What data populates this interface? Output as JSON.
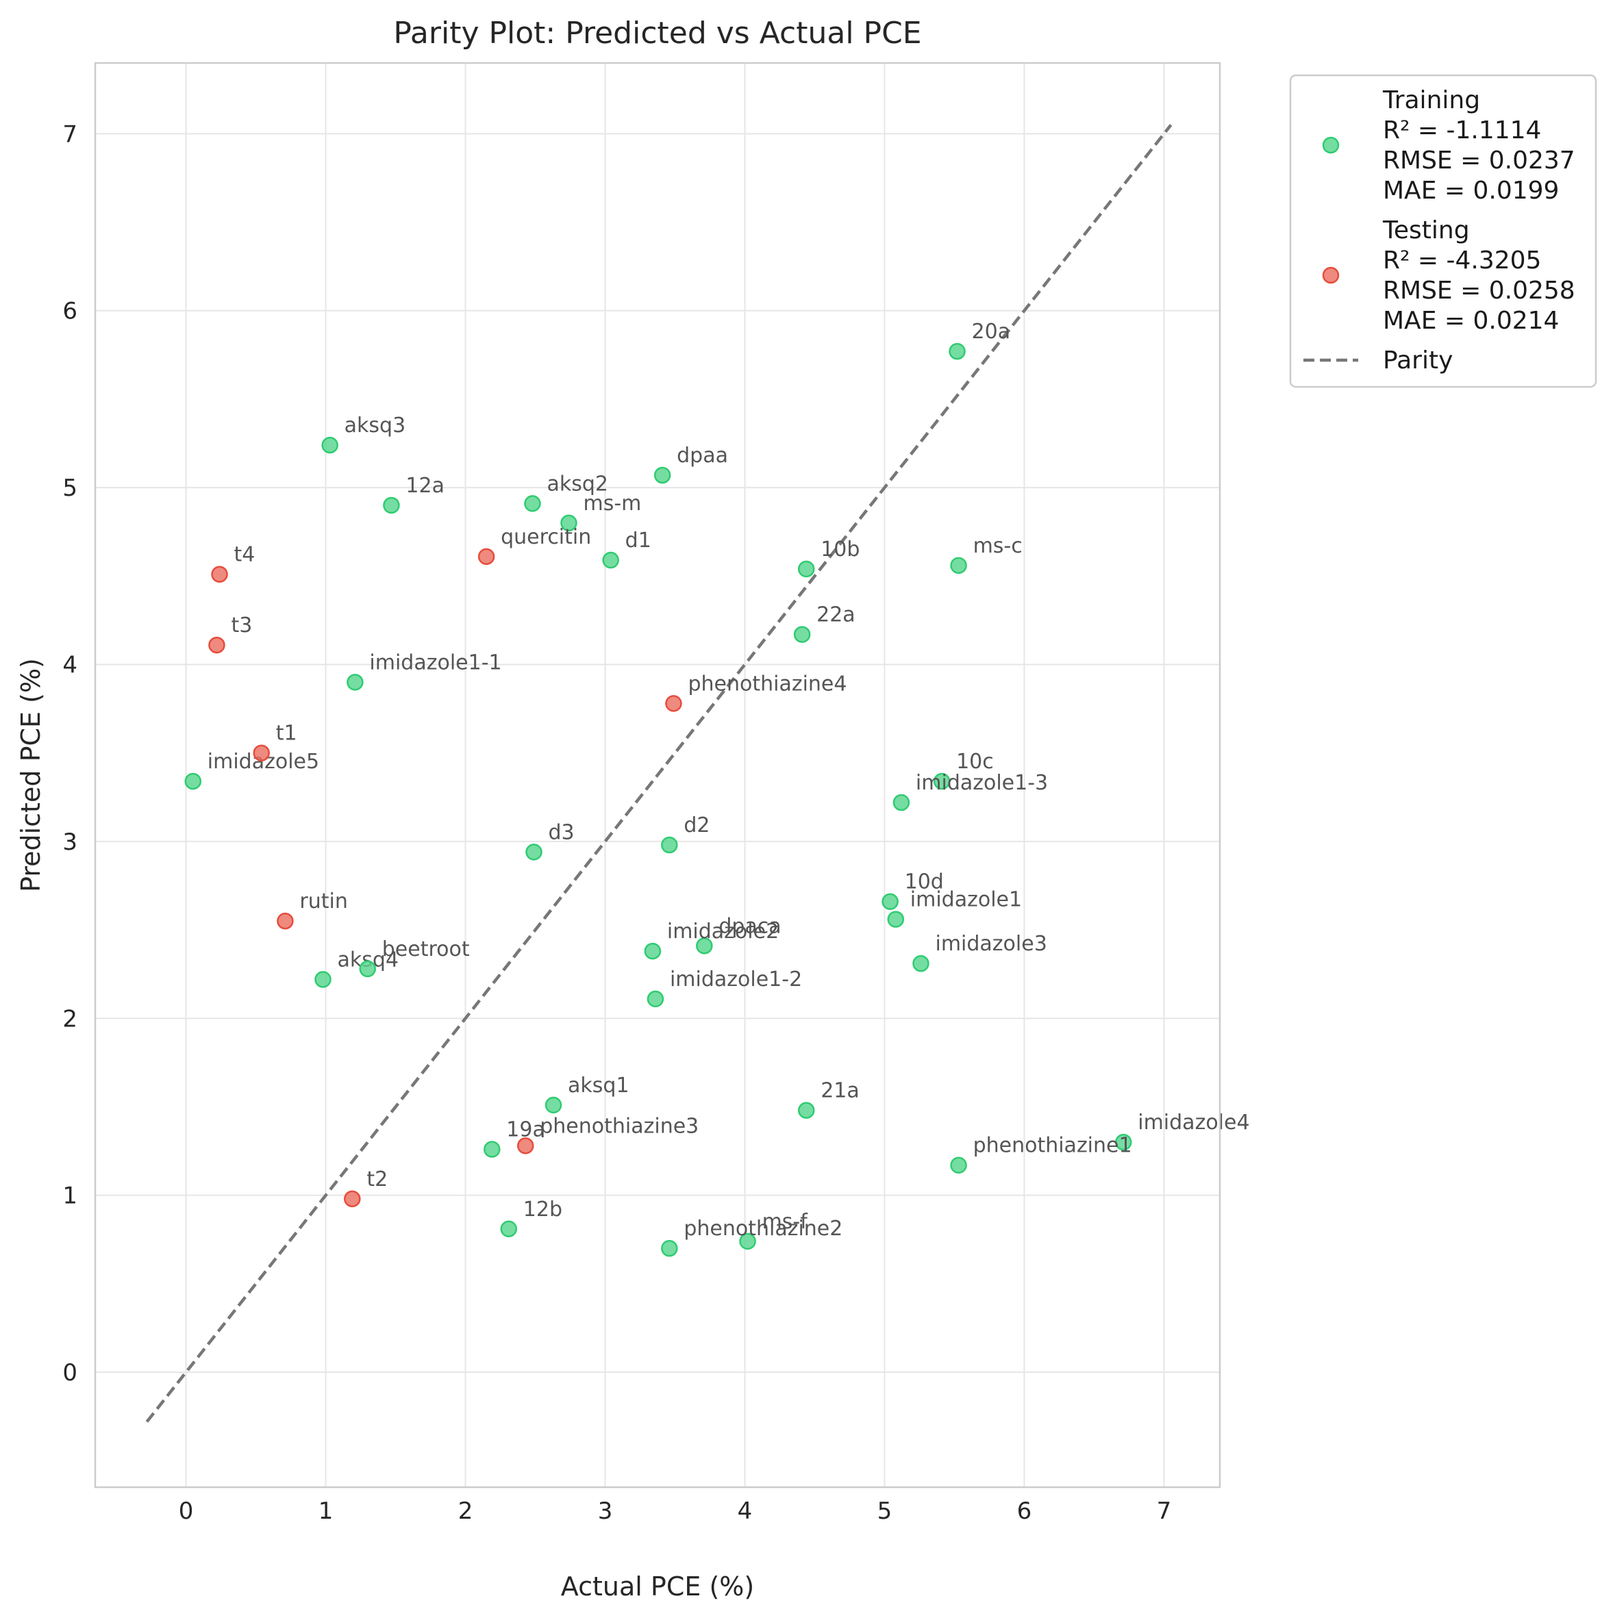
{
  "chart_data": {
    "type": "scatter",
    "title": "Parity Plot: Predicted vs Actual PCE",
    "xlabel": "Actual PCE (%)",
    "ylabel": "Predicted PCE (%)",
    "xlim": [
      -0.65,
      7.4
    ],
    "ylim": [
      -0.65,
      7.4
    ],
    "xticks": [
      0,
      1,
      2,
      3,
      4,
      5,
      6,
      7
    ],
    "yticks": [
      0,
      1,
      2,
      3,
      4,
      5,
      6,
      7
    ],
    "grid": true,
    "legend_position": "outside-top-right",
    "parity_line": {
      "name": "Parity",
      "color": "#777777",
      "from": [
        -0.28,
        -0.28
      ],
      "to": [
        7.05,
        7.05
      ]
    },
    "series": [
      {
        "name": "Training",
        "metrics": [
          "R² = -1.1114",
          "RMSE = 0.0237",
          "MAE = 0.0199"
        ],
        "color": "#58d68d",
        "edge": "#2ecc71",
        "points": [
          {
            "label": "20a",
            "x": 5.52,
            "y": 5.77
          },
          {
            "label": "aksq3",
            "x": 1.03,
            "y": 5.24
          },
          {
            "label": "dpaa",
            "x": 3.41,
            "y": 5.07
          },
          {
            "label": "12a",
            "x": 1.47,
            "y": 4.9
          },
          {
            "label": "aksq2",
            "x": 2.48,
            "y": 4.91
          },
          {
            "label": "ms-m",
            "x": 2.74,
            "y": 4.8
          },
          {
            "label": "d1",
            "x": 3.04,
            "y": 4.59
          },
          {
            "label": "10b",
            "x": 4.44,
            "y": 4.54
          },
          {
            "label": "ms-c",
            "x": 5.53,
            "y": 4.56
          },
          {
            "label": "22a",
            "x": 4.41,
            "y": 4.17
          },
          {
            "label": "imidazole1-1",
            "x": 1.21,
            "y": 3.9
          },
          {
            "label": "imidazole5",
            "x": 0.05,
            "y": 3.34
          },
          {
            "label": "10c",
            "x": 5.41,
            "y": 3.34
          },
          {
            "label": "imidazole1-3",
            "x": 5.12,
            "y": 3.22
          },
          {
            "label": "d3",
            "x": 2.49,
            "y": 2.94
          },
          {
            "label": "d2",
            "x": 3.46,
            "y": 2.98
          },
          {
            "label": "10d",
            "x": 5.04,
            "y": 2.66
          },
          {
            "label": "imidazole1",
            "x": 5.08,
            "y": 2.56
          },
          {
            "label": "imidazole3",
            "x": 5.26,
            "y": 2.31
          },
          {
            "label": "dpaca",
            "x": 3.71,
            "y": 2.41
          },
          {
            "label": "imidazole2",
            "x": 3.34,
            "y": 2.38
          },
          {
            "label": "aksq4",
            "x": 0.98,
            "y": 2.22
          },
          {
            "label": "beetroot",
            "x": 1.3,
            "y": 2.28
          },
          {
            "label": "imidazole1-2",
            "x": 3.36,
            "y": 2.11
          },
          {
            "label": "aksq1",
            "x": 2.63,
            "y": 1.51
          },
          {
            "label": "21a",
            "x": 4.44,
            "y": 1.48
          },
          {
            "label": "19a",
            "x": 2.19,
            "y": 1.26
          },
          {
            "label": "imidazole4",
            "x": 6.71,
            "y": 1.3
          },
          {
            "label": "phenothiazine1",
            "x": 5.53,
            "y": 1.17
          },
          {
            "label": "12b",
            "x": 2.31,
            "y": 0.81
          },
          {
            "label": "ms-f",
            "x": 4.02,
            "y": 0.74
          },
          {
            "label": "phenothiazine2",
            "x": 3.46,
            "y": 0.7
          }
        ]
      },
      {
        "name": "Testing",
        "metrics": [
          "R² = -4.3205",
          "RMSE = 0.0258",
          "MAE = 0.0214"
        ],
        "color": "#ec7063",
        "edge": "#e74c3c",
        "points": [
          {
            "label": "t4",
            "x": 0.24,
            "y": 4.51
          },
          {
            "label": "t3",
            "x": 0.22,
            "y": 4.11
          },
          {
            "label": "quercitin",
            "x": 2.15,
            "y": 4.61
          },
          {
            "label": "phenothiazine4",
            "x": 3.49,
            "y": 3.78
          },
          {
            "label": "t1",
            "x": 0.54,
            "y": 3.5
          },
          {
            "label": "rutin",
            "x": 0.71,
            "y": 2.55
          },
          {
            "label": "phenothiazine3",
            "x": 2.43,
            "y": 1.28
          },
          {
            "label": "t2",
            "x": 1.19,
            "y": 0.98
          }
        ]
      }
    ]
  }
}
